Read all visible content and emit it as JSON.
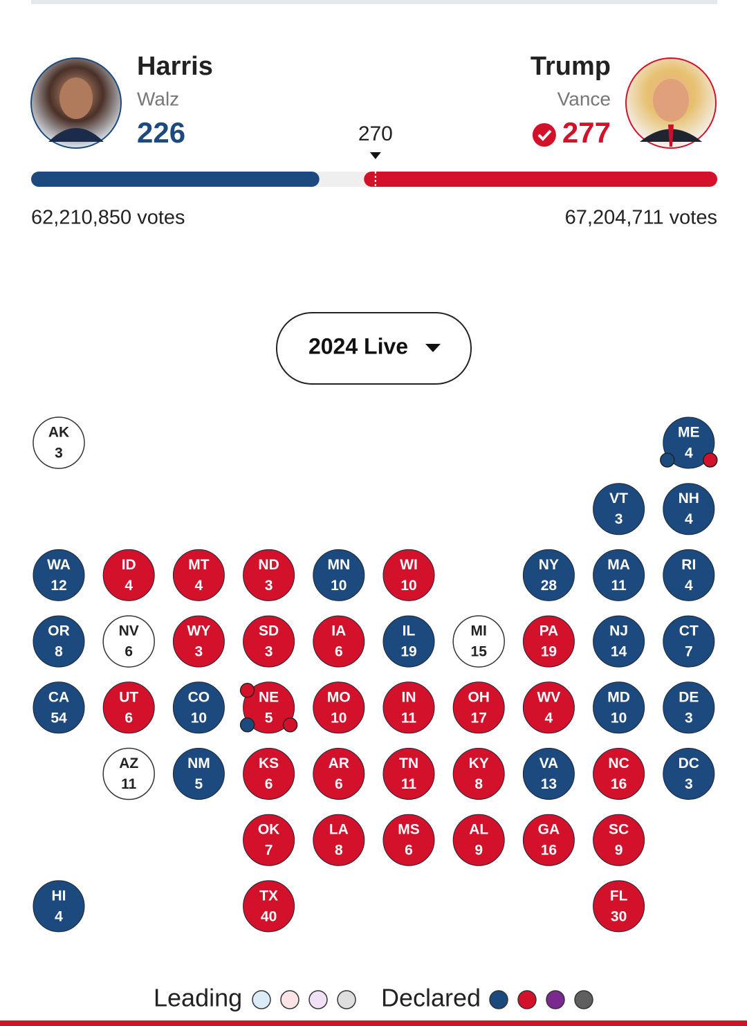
{
  "header": {
    "threshold": 270,
    "candidates": [
      {
        "name": "Harris",
        "running_mate": "Walz",
        "electoral_votes": 226,
        "popular_votes": "62,210,850 votes",
        "color": "#1c4a7e",
        "declared_winner": false
      },
      {
        "name": "Trump",
        "running_mate": "Vance",
        "electoral_votes": 277,
        "popular_votes": "67,204,711 votes",
        "color": "#d3112b",
        "declared_winner": true
      }
    ]
  },
  "dropdown": {
    "label": "2024 Live"
  },
  "grid": [
    [
      {
        "state": "AK",
        "votes": 3,
        "color": "#ffffff"
      },
      null,
      null,
      null,
      null,
      null,
      null,
      null,
      null,
      {
        "state": "ME",
        "votes": 4,
        "color": "#1c4a7e",
        "districts": [
          "#1c4a7e",
          "#d3112b"
        ]
      }
    ],
    [
      null,
      null,
      null,
      null,
      null,
      null,
      null,
      null,
      {
        "state": "VT",
        "votes": 3,
        "color": "#1c4a7e"
      },
      {
        "state": "NH",
        "votes": 4,
        "color": "#1c4a7e"
      }
    ],
    [
      {
        "state": "WA",
        "votes": 12,
        "color": "#1c4a7e"
      },
      {
        "state": "ID",
        "votes": 4,
        "color": "#d3112b"
      },
      {
        "state": "MT",
        "votes": 4,
        "color": "#d3112b"
      },
      {
        "state": "ND",
        "votes": 3,
        "color": "#d3112b"
      },
      {
        "state": "MN",
        "votes": 10,
        "color": "#1c4a7e"
      },
      {
        "state": "WI",
        "votes": 10,
        "color": "#d3112b"
      },
      null,
      {
        "state": "NY",
        "votes": 28,
        "color": "#1c4a7e"
      },
      {
        "state": "MA",
        "votes": 11,
        "color": "#1c4a7e"
      },
      {
        "state": "RI",
        "votes": 4,
        "color": "#1c4a7e"
      }
    ],
    [
      {
        "state": "OR",
        "votes": 8,
        "color": "#1c4a7e"
      },
      {
        "state": "NV",
        "votes": 6,
        "color": "#ffffff"
      },
      {
        "state": "WY",
        "votes": 3,
        "color": "#d3112b"
      },
      {
        "state": "SD",
        "votes": 3,
        "color": "#d3112b"
      },
      {
        "state": "IA",
        "votes": 6,
        "color": "#d3112b"
      },
      {
        "state": "IL",
        "votes": 19,
        "color": "#1c4a7e"
      },
      {
        "state": "MI",
        "votes": 15,
        "color": "#ffffff"
      },
      {
        "state": "PA",
        "votes": 19,
        "color": "#d3112b"
      },
      {
        "state": "NJ",
        "votes": 14,
        "color": "#1c4a7e"
      },
      {
        "state": "CT",
        "votes": 7,
        "color": "#1c4a7e"
      }
    ],
    [
      {
        "state": "CA",
        "votes": 54,
        "color": "#1c4a7e"
      },
      {
        "state": "UT",
        "votes": 6,
        "color": "#d3112b"
      },
      {
        "state": "CO",
        "votes": 10,
        "color": "#1c4a7e"
      },
      {
        "state": "NE",
        "votes": 5,
        "color": "#d3112b",
        "districts": [
          "#d3112b",
          "#1c4a7e",
          "#d3112b"
        ]
      },
      {
        "state": "MO",
        "votes": 10,
        "color": "#d3112b"
      },
      {
        "state": "IN",
        "votes": 11,
        "color": "#d3112b"
      },
      {
        "state": "OH",
        "votes": 17,
        "color": "#d3112b"
      },
      {
        "state": "WV",
        "votes": 4,
        "color": "#d3112b"
      },
      {
        "state": "MD",
        "votes": 10,
        "color": "#1c4a7e"
      },
      {
        "state": "DE",
        "votes": 3,
        "color": "#1c4a7e"
      }
    ],
    [
      null,
      {
        "state": "AZ",
        "votes": 11,
        "color": "#ffffff"
      },
      {
        "state": "NM",
        "votes": 5,
        "color": "#1c4a7e"
      },
      {
        "state": "KS",
        "votes": 6,
        "color": "#d3112b"
      },
      {
        "state": "AR",
        "votes": 6,
        "color": "#d3112b"
      },
      {
        "state": "TN",
        "votes": 11,
        "color": "#d3112b"
      },
      {
        "state": "KY",
        "votes": 8,
        "color": "#d3112b"
      },
      {
        "state": "VA",
        "votes": 13,
        "color": "#1c4a7e"
      },
      {
        "state": "NC",
        "votes": 16,
        "color": "#d3112b"
      },
      {
        "state": "DC",
        "votes": 3,
        "color": "#1c4a7e"
      }
    ],
    [
      null,
      null,
      null,
      {
        "state": "OK",
        "votes": 7,
        "color": "#d3112b"
      },
      {
        "state": "LA",
        "votes": 8,
        "color": "#d3112b"
      },
      {
        "state": "MS",
        "votes": 6,
        "color": "#d3112b"
      },
      {
        "state": "AL",
        "votes": 9,
        "color": "#d3112b"
      },
      {
        "state": "GA",
        "votes": 16,
        "color": "#d3112b"
      },
      {
        "state": "SC",
        "votes": 9,
        "color": "#d3112b"
      },
      null
    ],
    [
      {
        "state": "HI",
        "votes": 4,
        "color": "#1c4a7e"
      },
      null,
      null,
      {
        "state": "TX",
        "votes": 40,
        "color": "#d3112b"
      },
      null,
      null,
      null,
      null,
      {
        "state": "FL",
        "votes": 30,
        "color": "#d3112b"
      },
      null
    ]
  ],
  "legend": {
    "leading": {
      "label": "Leading",
      "colors": [
        "#dcebf8",
        "#fbe3e6",
        "#f0e1f5",
        "#dedede"
      ]
    },
    "declared": {
      "label": "Declared",
      "colors": [
        "#1c4a7e",
        "#d3112b",
        "#7a2a8f",
        "#5f5f5f"
      ]
    }
  }
}
